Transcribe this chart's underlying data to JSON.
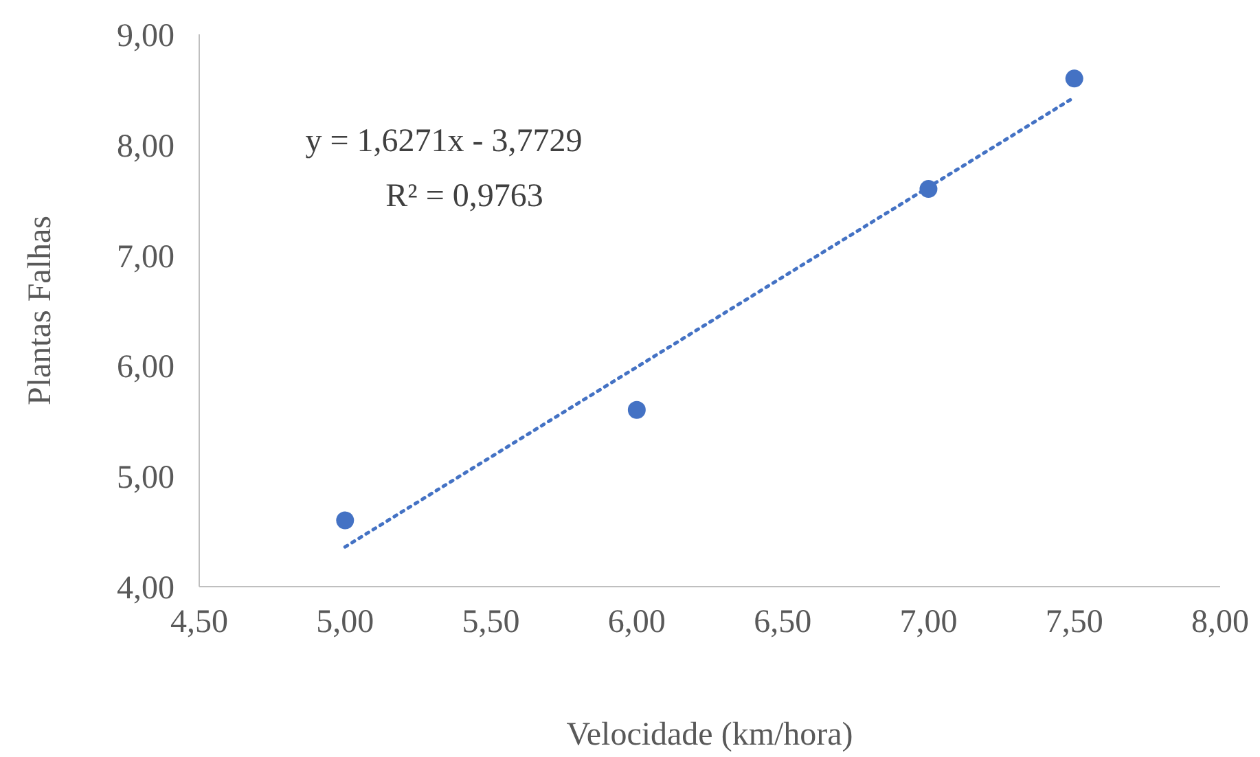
{
  "chart_data": {
    "type": "scatter",
    "xlabel": "Velocidade (km/hora)",
    "ylabel": "Plantas Falhas",
    "marker": "circle",
    "series": [
      {
        "color": "#4472c4",
        "x": [
          5,
          6,
          7,
          7.5
        ],
        "values": [
          4.6,
          5.6,
          7.6,
          8.6
        ]
      },
      {
        "type": "line",
        "color": "#4472c4",
        "line_style": "dotted",
        "marker": "none",
        "x": [
          5,
          7.5
        ],
        "values": [
          4.36,
          8.43
        ]
      }
    ],
    "xlim": [
      4.5,
      8
    ],
    "xticks": [
      {
        "value": 4.5,
        "label": "4,50"
      },
      {
        "value": 5,
        "label": "5,00"
      },
      {
        "value": 5.5,
        "label": "5,50"
      },
      {
        "value": 6,
        "label": "6,00"
      },
      {
        "value": 6.5,
        "label": "6,50"
      },
      {
        "value": 7,
        "label": "7,00"
      },
      {
        "value": 7.5,
        "label": "7,50"
      },
      {
        "value": 8,
        "label": "8,00"
      }
    ],
    "ylim": [
      4,
      9
    ],
    "yticks": [
      {
        "value": 4,
        "label": "4,00"
      },
      {
        "value": 5,
        "label": "5,00"
      },
      {
        "value": 6,
        "label": "6,00"
      },
      {
        "value": 7,
        "label": "7,00"
      },
      {
        "value": 8,
        "label": "8,00"
      },
      {
        "value": 9,
        "label": "9,00"
      }
    ],
    "grid": false,
    "annotations": [
      "y = 1,6271x - 3,7729",
      "R² = 0,9763"
    ]
  }
}
